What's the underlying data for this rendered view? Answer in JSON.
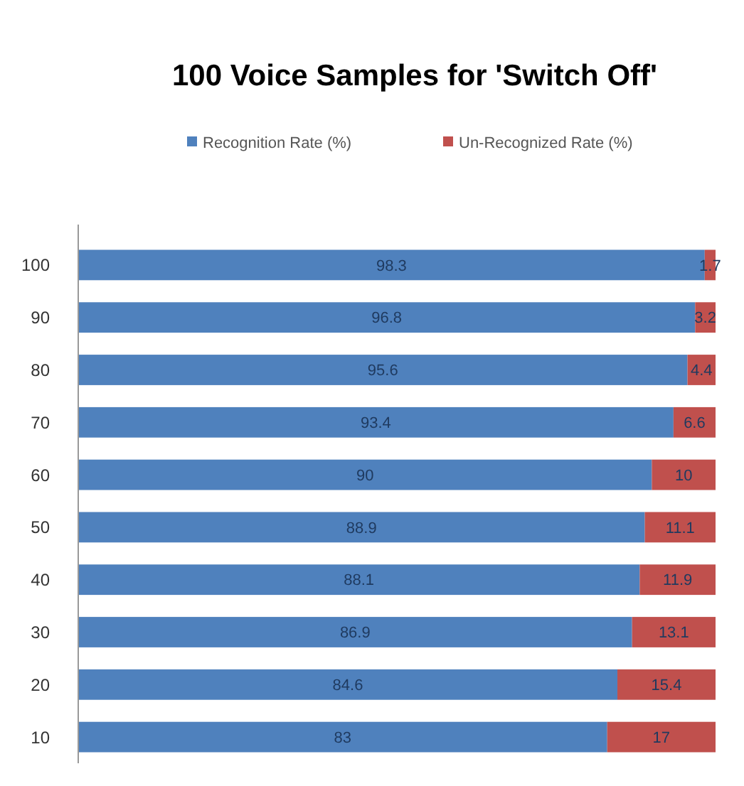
{
  "chart_data": {
    "type": "bar",
    "orientation": "horizontal",
    "stacked": true,
    "title": "100 Voice Samples for 'Switch Off'",
    "categories": [
      "100",
      "90",
      "80",
      "70",
      "60",
      "50",
      "40",
      "30",
      "20",
      "10"
    ],
    "series": [
      {
        "name": "Recognition Rate (%)",
        "color": "#4f81bd",
        "values": [
          98.3,
          96.8,
          95.6,
          93.4,
          90,
          88.9,
          88.1,
          86.9,
          84.6,
          83
        ]
      },
      {
        "name": "Un-Recognized Rate (%)",
        "color": "#c0504d",
        "values": [
          1.7,
          3.2,
          4.4,
          6.6,
          10,
          11.1,
          11.9,
          13.1,
          15.4,
          17
        ]
      }
    ],
    "xlim": [
      0,
      100
    ],
    "tick_labels": "y",
    "data_labels": true,
    "legend": "top",
    "grid": false
  }
}
